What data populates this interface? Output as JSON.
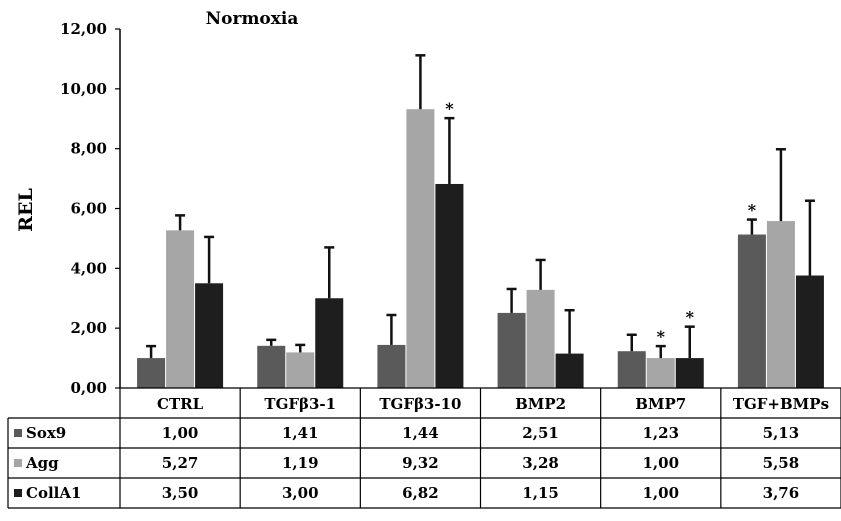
{
  "chart_data": {
    "type": "bar",
    "title": "Normoxia",
    "ylabel": "REL",
    "xlabel": "",
    "ylim": [
      0,
      12
    ],
    "yticks": [
      "0,00",
      "2,00",
      "4,00",
      "6,00",
      "8,00",
      "10,00",
      "12,00"
    ],
    "categories": [
      "CTRL",
      "TGFβ3-1",
      "TGFβ3-10",
      "BMP2",
      "BMP7",
      "TGF+BMPs"
    ],
    "legend_placement": "table-below",
    "series": [
      {
        "name": "Sox9",
        "color": "#5a5a5a",
        "values": [
          1.0,
          1.41,
          1.44,
          2.51,
          1.23,
          5.13
        ],
        "errors": [
          0.4,
          0.2,
          1.0,
          0.8,
          0.55,
          0.5
        ],
        "labels": [
          "1,00",
          "1,41",
          "1,44",
          "2,51",
          "1,23",
          "5,13"
        ],
        "significant": [
          false,
          false,
          false,
          false,
          false,
          true
        ]
      },
      {
        "name": "Agg",
        "color": "#a6a6a6",
        "values": [
          5.27,
          1.19,
          9.32,
          3.28,
          1.0,
          5.58
        ],
        "errors": [
          0.5,
          0.25,
          1.8,
          1.0,
          0.4,
          2.4
        ],
        "labels": [
          "5,27",
          "1,19",
          "9,32",
          "3,28",
          "1,00",
          "5,58"
        ],
        "significant": [
          false,
          false,
          false,
          false,
          true,
          false
        ]
      },
      {
        "name": "CollA1",
        "color": "#1e1e1e",
        "values": [
          3.5,
          3.0,
          6.82,
          1.15,
          1.0,
          3.76
        ],
        "errors": [
          1.55,
          1.7,
          2.2,
          1.45,
          1.05,
          2.5
        ],
        "labels": [
          "3,50",
          "3,00",
          "6,82",
          "1,15",
          "1,00",
          "3,76"
        ],
        "significant": [
          false,
          false,
          true,
          false,
          true,
          false
        ]
      }
    ],
    "significance_marker": "*"
  }
}
